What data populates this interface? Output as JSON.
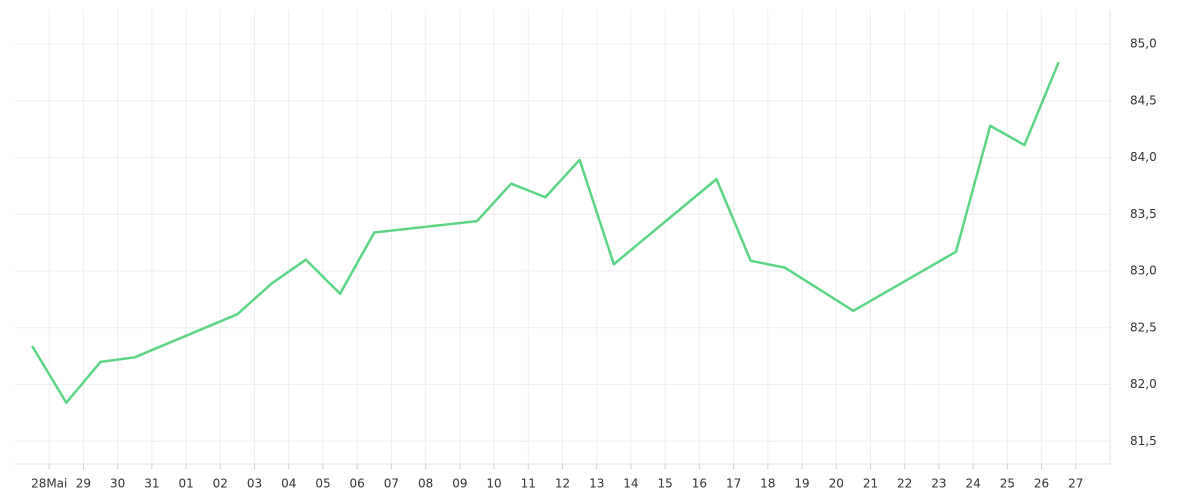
{
  "chart_data": {
    "type": "line",
    "x": [
      -0.5,
      0.5,
      1.5,
      2.5,
      5.5,
      6.5,
      7.5,
      8.5,
      9.5,
      12.5,
      13.5,
      14.5,
      15.5,
      16.5,
      19.5,
      20.5,
      21.5,
      23.5,
      26.5,
      27.5,
      28.5,
      29.5
    ],
    "series": [
      {
        "color": "#5cd685",
        "values": [
          82.34,
          81.84,
          82.2,
          82.24,
          82.62,
          82.89,
          83.1,
          82.8,
          83.34,
          83.44,
          83.77,
          83.65,
          83.98,
          83.06,
          83.81,
          83.09,
          83.03,
          82.65,
          83.17,
          84.28,
          84.11,
          84.84
        ]
      }
    ],
    "xlim": [
      -1,
      31
    ],
    "xticks": [
      {
        "value": 0,
        "label": "28Mai"
      },
      {
        "value": 1,
        "label": "29"
      },
      {
        "value": 2,
        "label": "30"
      },
      {
        "value": 3,
        "label": "31"
      },
      {
        "value": 4,
        "label": "01"
      },
      {
        "value": 5,
        "label": "02"
      },
      {
        "value": 6,
        "label": "03"
      },
      {
        "value": 7,
        "label": "04"
      },
      {
        "value": 8,
        "label": "05"
      },
      {
        "value": 9,
        "label": "06"
      },
      {
        "value": 10,
        "label": "07"
      },
      {
        "value": 11,
        "label": "08"
      },
      {
        "value": 12,
        "label": "09"
      },
      {
        "value": 13,
        "label": "10"
      },
      {
        "value": 14,
        "label": "11"
      },
      {
        "value": 15,
        "label": "12"
      },
      {
        "value": 16,
        "label": "13"
      },
      {
        "value": 17,
        "label": "14"
      },
      {
        "value": 18,
        "label": "15"
      },
      {
        "value": 19,
        "label": "16"
      },
      {
        "value": 20,
        "label": "17"
      },
      {
        "value": 21,
        "label": "18"
      },
      {
        "value": 22,
        "label": "19"
      },
      {
        "value": 23,
        "label": "20"
      },
      {
        "value": 24,
        "label": "21"
      },
      {
        "value": 25,
        "label": "22"
      },
      {
        "value": 26,
        "label": "23"
      },
      {
        "value": 27,
        "label": "24"
      },
      {
        "value": 28,
        "label": "25"
      },
      {
        "value": 29,
        "label": "26"
      },
      {
        "value": 30,
        "label": "27"
      }
    ],
    "ylim": [
      81.3,
      85.3
    ],
    "yticks": [
      {
        "value": 81.5,
        "label": "81,5"
      },
      {
        "value": 82,
        "label": "82,0"
      },
      {
        "value": 82.5,
        "label": "82,5"
      },
      {
        "value": 83,
        "label": "83,0"
      },
      {
        "value": 83.5,
        "label": "83,5"
      },
      {
        "value": 84,
        "label": "84,0"
      },
      {
        "value": 84.5,
        "label": "84,5"
      },
      {
        "value": 85,
        "label": "85,0"
      }
    ],
    "grid": true
  }
}
